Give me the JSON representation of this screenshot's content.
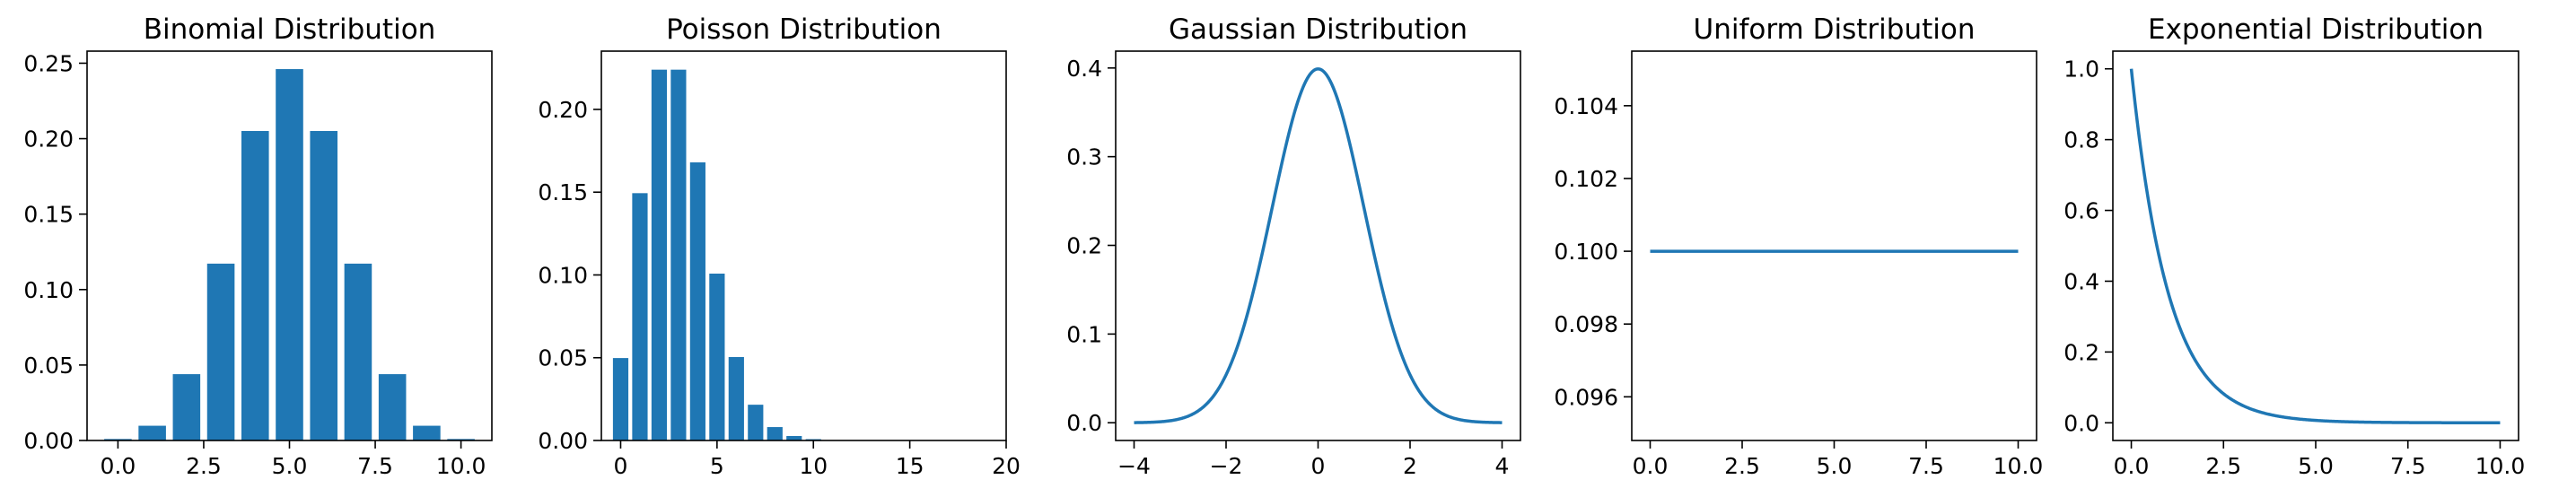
{
  "chart_data": [
    {
      "type": "bar",
      "title": "Binomial Distribution",
      "xlabel": "",
      "ylabel": "",
      "x": [
        0,
        1,
        2,
        3,
        4,
        5,
        6,
        7,
        8,
        9,
        10
      ],
      "values": [
        0.00098,
        0.00977,
        0.04395,
        0.11719,
        0.20508,
        0.24609,
        0.20508,
        0.11719,
        0.04395,
        0.00977,
        0.00098
      ],
      "xlim": [
        -0.9,
        10.9
      ],
      "ylim": [
        0,
        0.258
      ],
      "xticks": [
        0,
        2.5,
        5,
        7.5,
        10
      ],
      "xtick_labels": [
        "0.0",
        "2.5",
        "5.0",
        "7.5",
        "10.0"
      ],
      "yticks": [
        0,
        0.05,
        0.1,
        0.15,
        0.2,
        0.25
      ],
      "ytick_labels": [
        "0.00",
        "0.05",
        "0.10",
        "0.15",
        "0.20",
        "0.25"
      ],
      "color": "#1f77b4",
      "grid": false
    },
    {
      "type": "bar",
      "title": "Poisson Distribution",
      "xlabel": "",
      "ylabel": "",
      "x": [
        0,
        1,
        2,
        3,
        4,
        5,
        6,
        7,
        8,
        9,
        10,
        11,
        12,
        13,
        14,
        15,
        16,
        17,
        18,
        19
      ],
      "values": [
        0.0498,
        0.1494,
        0.224,
        0.224,
        0.168,
        0.1008,
        0.0504,
        0.0216,
        0.0081,
        0.0027,
        0.0008,
        0.0002,
        6e-05,
        1e-05,
        0,
        0,
        0,
        0,
        0,
        0
      ],
      "xlim": [
        -1.0,
        20.0
      ],
      "ylim": [
        0,
        0.2352
      ],
      "xticks": [
        0,
        5,
        10,
        15,
        20
      ],
      "xtick_labels": [
        "0",
        "5",
        "10",
        "15",
        "20"
      ],
      "yticks": [
        0,
        0.05,
        0.1,
        0.15,
        0.2
      ],
      "ytick_labels": [
        "0.00",
        "0.05",
        "0.10",
        "0.15",
        "0.20"
      ],
      "color": "#1f77b4",
      "grid": false
    },
    {
      "type": "line",
      "title": "Gaussian Distribution",
      "xlabel": "",
      "ylabel": "",
      "function": "gaussian",
      "mean": 0,
      "std": 1,
      "x_range": [
        -4,
        4
      ],
      "xlim": [
        -4.4,
        4.4
      ],
      "ylim": [
        -0.02,
        0.419
      ],
      "xticks": [
        -4,
        -2,
        0,
        2,
        4
      ],
      "xtick_labels": [
        "−4",
        "−2",
        "0",
        "2",
        "4"
      ],
      "yticks": [
        0,
        0.1,
        0.2,
        0.3,
        0.4
      ],
      "ytick_labels": [
        "0.0",
        "0.1",
        "0.2",
        "0.3",
        "0.4"
      ],
      "color": "#1f77b4",
      "grid": false
    },
    {
      "type": "line",
      "title": "Uniform Distribution",
      "xlabel": "",
      "ylabel": "",
      "function": "constant",
      "value": 0.1,
      "x_range": [
        0,
        10
      ],
      "xlim": [
        -0.5,
        10.5
      ],
      "ylim": [
        0.0948,
        0.1055
      ],
      "xticks": [
        0,
        2.5,
        5,
        7.5,
        10
      ],
      "xtick_labels": [
        "0.0",
        "2.5",
        "5.0",
        "7.5",
        "10.0"
      ],
      "yticks": [
        0.096,
        0.098,
        0.1,
        0.102,
        0.104
      ],
      "ytick_labels": [
        "0.096",
        "0.098",
        "0.100",
        "0.102",
        "0.104"
      ],
      "color": "#1f77b4",
      "grid": false
    },
    {
      "type": "line",
      "title": "Exponential Distribution",
      "xlabel": "",
      "ylabel": "",
      "function": "exponential",
      "rate": 1,
      "x_range": [
        0,
        10
      ],
      "xlim": [
        -0.5,
        10.5
      ],
      "ylim": [
        -0.05,
        1.05
      ],
      "xticks": [
        0,
        2.5,
        5,
        7.5,
        10
      ],
      "xtick_labels": [
        "0.0",
        "2.5",
        "5.0",
        "7.5",
        "10.0"
      ],
      "yticks": [
        0,
        0.2,
        0.4,
        0.6,
        0.8,
        1.0
      ],
      "ytick_labels": [
        "0.0",
        "0.2",
        "0.4",
        "0.6",
        "0.8",
        "1.0"
      ],
      "color": "#1f77b4",
      "grid": false
    }
  ]
}
